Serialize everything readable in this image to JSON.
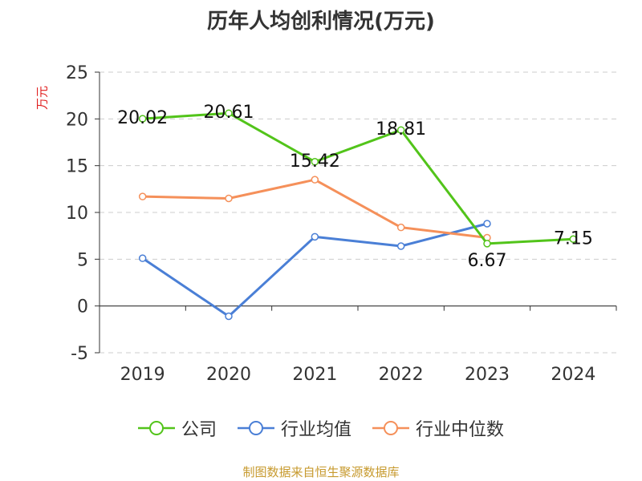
{
  "chart_data": {
    "type": "line",
    "title": "历年人均创利情况(万元)",
    "ylabel": "万元",
    "xlabel": "",
    "categories": [
      "2019",
      "2020",
      "2021",
      "2022",
      "2023",
      "2024"
    ],
    "ylim": [
      -5,
      25
    ],
    "yticks": [
      -5,
      0,
      5,
      10,
      15,
      20,
      25
    ],
    "grid": true,
    "legend_position": "bottom",
    "series": [
      {
        "name": "公司",
        "color": "#52c41a",
        "values": [
          20.02,
          20.61,
          15.42,
          18.81,
          6.67,
          7.15
        ],
        "labels": [
          "20.02",
          "20.61",
          "15.42",
          "18.81",
          "6.67",
          "7.15"
        ]
      },
      {
        "name": "行业均值",
        "color": "#4a7fd6",
        "values": [
          5.1,
          -1.1,
          7.4,
          6.4,
          8.8,
          null
        ]
      },
      {
        "name": "行业中位数",
        "color": "#f5905a",
        "values": [
          11.7,
          11.5,
          13.5,
          8.4,
          7.3,
          null
        ]
      }
    ]
  },
  "footer": {
    "source": "制图数据来自恒生聚源数据库"
  }
}
